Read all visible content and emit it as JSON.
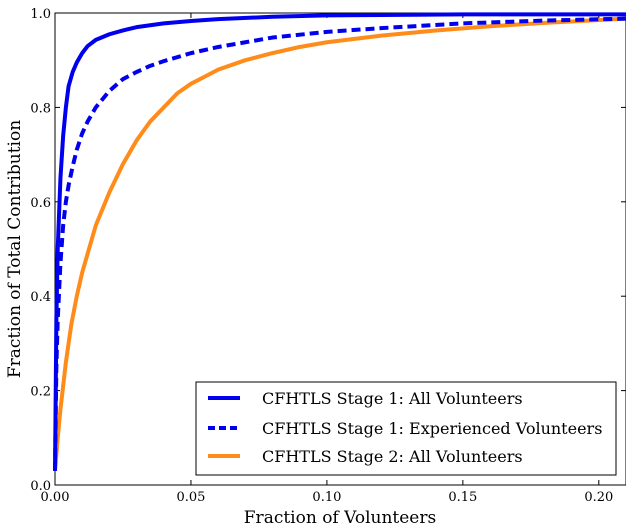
{
  "chart_data": {
    "type": "line",
    "title": "",
    "xlabel": "Fraction of Volunteers",
    "ylabel": "Fraction of Total Contribution",
    "xlim": [
      0.0,
      0.21
    ],
    "ylim": [
      0.0,
      1.0
    ],
    "xticks": [
      0.0,
      0.05,
      0.1,
      0.15,
      0.2
    ],
    "xtick_labels": [
      "0.00",
      "0.05",
      "0.10",
      "0.15",
      "0.20"
    ],
    "yticks": [
      0.0,
      0.2,
      0.4,
      0.6,
      0.8,
      1.0
    ],
    "ytick_labels": [
      "0.0",
      "0.2",
      "0.4",
      "0.6",
      "0.8",
      "1.0"
    ],
    "grid": false,
    "legend_position": "lower-right",
    "series": [
      {
        "name": "CFHTLS Stage 1: All Volunteers",
        "color": "#0000ee",
        "style": "solid",
        "x": [
          0.0,
          0.0005,
          0.001,
          0.002,
          0.003,
          0.004,
          0.005,
          0.0065,
          0.008,
          0.01,
          0.012,
          0.015,
          0.02,
          0.025,
          0.03,
          0.04,
          0.05,
          0.06,
          0.08,
          0.1,
          0.15,
          0.21
        ],
        "y": [
          0.03,
          0.35,
          0.5,
          0.65,
          0.74,
          0.8,
          0.845,
          0.875,
          0.895,
          0.915,
          0.93,
          0.943,
          0.955,
          0.963,
          0.97,
          0.978,
          0.983,
          0.987,
          0.992,
          0.995,
          0.997,
          0.997
        ]
      },
      {
        "name": "CFHTLS Stage 1: Experienced Volunteers",
        "color": "#0000ee",
        "style": "dashed",
        "x": [
          0.0,
          0.0005,
          0.001,
          0.002,
          0.003,
          0.004,
          0.005,
          0.0065,
          0.008,
          0.01,
          0.012,
          0.015,
          0.02,
          0.025,
          0.03,
          0.035,
          0.04,
          0.05,
          0.06,
          0.07,
          0.08,
          0.1,
          0.12,
          0.15,
          0.18,
          0.21
        ],
        "y": [
          0.03,
          0.25,
          0.35,
          0.47,
          0.55,
          0.6,
          0.635,
          0.675,
          0.71,
          0.745,
          0.77,
          0.8,
          0.835,
          0.86,
          0.875,
          0.888,
          0.898,
          0.915,
          0.928,
          0.938,
          0.948,
          0.96,
          0.968,
          0.978,
          0.984,
          0.988
        ]
      },
      {
        "name": "CFHTLS Stage 2: All Volunteers",
        "color": "#ff8c1a",
        "style": "solid",
        "x": [
          0.0,
          0.001,
          0.002,
          0.004,
          0.006,
          0.008,
          0.01,
          0.012,
          0.015,
          0.02,
          0.025,
          0.03,
          0.035,
          0.04,
          0.045,
          0.05,
          0.055,
          0.06,
          0.07,
          0.08,
          0.09,
          0.1,
          0.12,
          0.14,
          0.16,
          0.18,
          0.21
        ],
        "y": [
          0.03,
          0.1,
          0.16,
          0.26,
          0.34,
          0.4,
          0.45,
          0.49,
          0.55,
          0.62,
          0.68,
          0.73,
          0.77,
          0.8,
          0.83,
          0.85,
          0.865,
          0.88,
          0.9,
          0.915,
          0.928,
          0.938,
          0.952,
          0.963,
          0.972,
          0.979,
          0.988
        ]
      }
    ]
  }
}
